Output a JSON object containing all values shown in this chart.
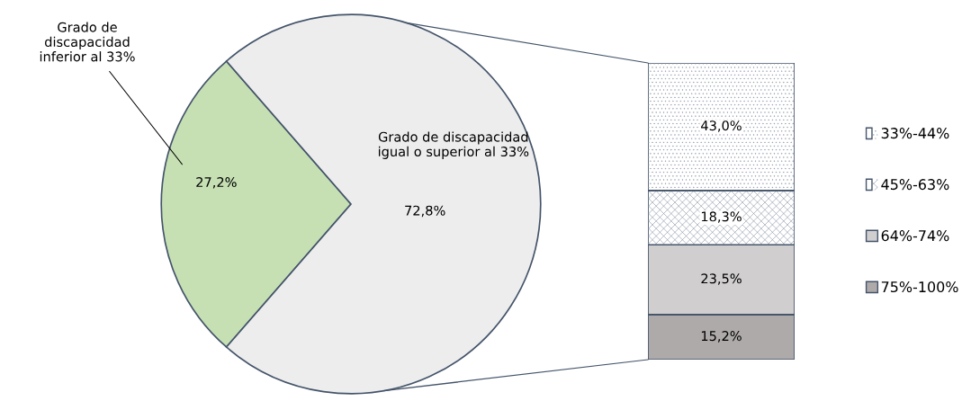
{
  "chart_data": [
    {
      "type": "pie",
      "categories": [
        "Grado de discapacidad inferior al 33%",
        "Grado de discapacidad igual o superior al 33%"
      ],
      "values": [
        27.2,
        72.8
      ],
      "value_labels": [
        "27,2%",
        "72,8%"
      ],
      "colors": [
        "#c6e0b4",
        "#ededed"
      ],
      "legend": false
    },
    {
      "type": "bar",
      "stacked": true,
      "categories": [
        null
      ],
      "legend": "right",
      "series": [
        {
          "name": "75%-100%",
          "color": "#aeaaaa",
          "values": [
            15.2
          ],
          "value_labels": [
            "15,2%"
          ]
        },
        {
          "name": "64%-74%",
          "color": "#d0cece",
          "values": [
            23.5
          ],
          "value_labels": [
            "23,5%"
          ]
        },
        {
          "name": "45%-63%",
          "color": "#ffffff",
          "values": [
            18.3
          ],
          "value_labels": [
            "18,3%"
          ]
        },
        {
          "name": "33%-44%",
          "color": "#ffffff",
          "values": [
            43.0
          ],
          "value_labels": [
            "43,0%"
          ]
        }
      ]
    }
  ]
}
